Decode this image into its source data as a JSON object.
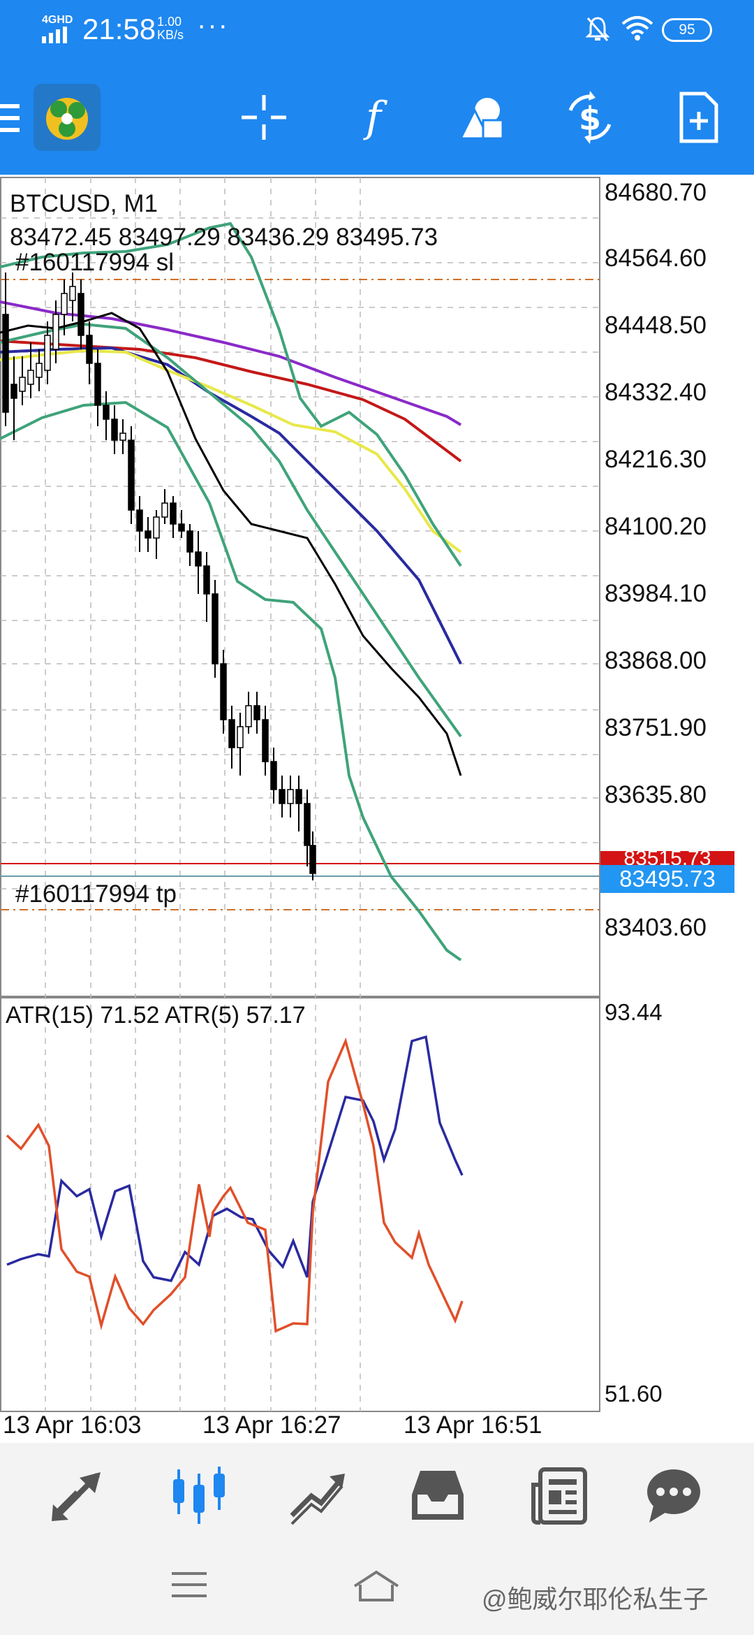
{
  "status_bar": {
    "network": "4GHD",
    "time": "21:58",
    "speed_value": "1.00",
    "speed_unit": "KB/s",
    "dots": "···",
    "battery": "95"
  },
  "toolbar": {
    "icons": [
      "menu-icon",
      "metatrader-logo",
      "crosshair-icon",
      "indicators-icon",
      "objects-icon",
      "trade-icon",
      "new-order-icon"
    ]
  },
  "chart": {
    "symbol": "BTCUSD, M1",
    "ohlc": "83472.45 83497.29 83436.29 83495.73",
    "sl_label": "#160117994 sl",
    "tp_label": "#160117994 tp",
    "current_price": "83495.73",
    "ask_price": "83515.73",
    "y_ticks": [
      "84680.70",
      "84564.60",
      "84448.50",
      "84332.40",
      "84216.30",
      "84100.20",
      "83984.10",
      "83868.00",
      "83751.90",
      "83635.80",
      "83403.60"
    ],
    "colors": {
      "bull_candle": "#ffffff",
      "bear_candle": "#000000",
      "bollinger": "#3fa37a",
      "ma_fast": "#000000",
      "ma_blue": "#2a2aa0",
      "ma_yellow": "#e8e84a",
      "ma_red": "#c41818",
      "ma_purple": "#8a2ac8"
    }
  },
  "indicator": {
    "label": "ATR(15) 71.52 ATR(5) 57.17",
    "y_max": "93.44",
    "y_min": "51.60",
    "colors": {
      "atr15": "#2a2aa0",
      "atr5": "#e0502a"
    }
  },
  "x_axis": {
    "labels": [
      "13 Apr 16:03",
      "13 Apr 16:27",
      "13 Apr 16:51"
    ]
  },
  "bottom_nav": {
    "items": [
      "quotes-icon",
      "chart-icon",
      "trade-icon",
      "history-icon",
      "news-icon",
      "chat-icon"
    ],
    "active": "chart-icon",
    "active_color": "#1e87f0"
  },
  "system_nav": {
    "watermark": "@鲍威尔耶伦私生子"
  }
}
